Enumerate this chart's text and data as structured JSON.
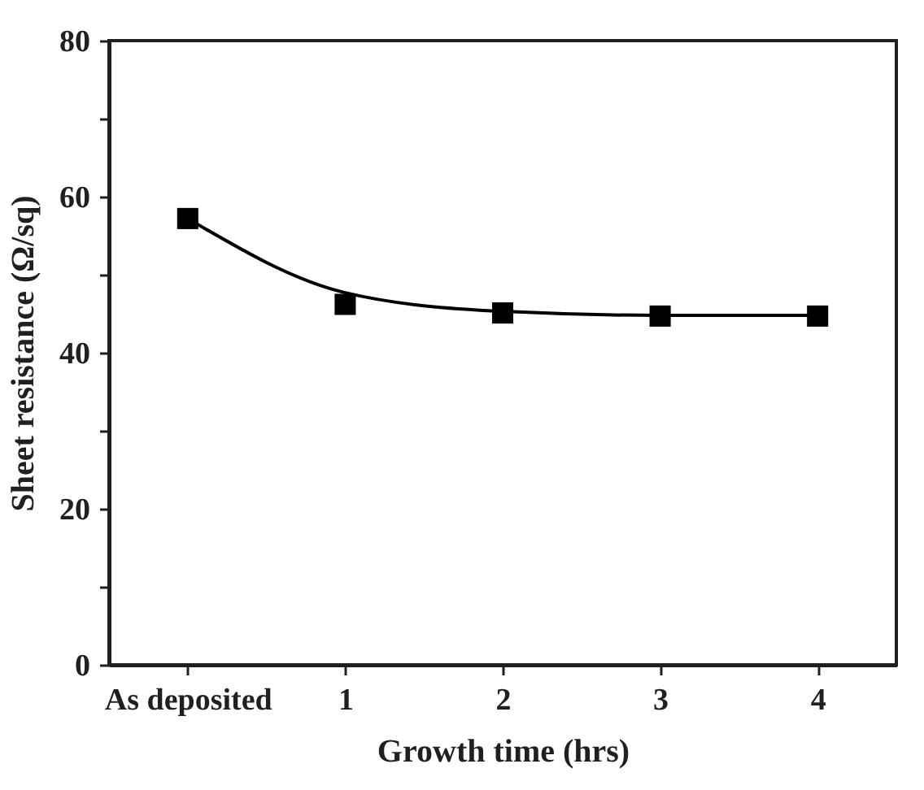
{
  "chart_data": {
    "type": "scatter",
    "xlabel": "Growth time (hrs)",
    "ylabel": "Sheet resistance (Ω/sq)",
    "categories": [
      "As deposited",
      "1",
      "2",
      "3",
      "4"
    ],
    "ylim": [
      0,
      80
    ],
    "yticks": [
      0,
      {
        "value": 10,
        "label": null
      },
      20,
      {
        "value": 30,
        "label": null
      },
      40,
      {
        "value": 50,
        "label": null
      },
      60,
      {
        "value": 70,
        "label": null
      },
      80
    ],
    "grid": false,
    "series": [
      {
        "type": "line",
        "color": "#000000",
        "values": [
          57.2,
          47.7,
          45.3,
          44.8,
          44.8
        ],
        "marker": "none",
        "line_style": "solid"
      },
      {
        "color": "#000000",
        "values": [
          57.2,
          46.2,
          45.1,
          44.7,
          44.7
        ],
        "marker": "square"
      }
    ]
  }
}
